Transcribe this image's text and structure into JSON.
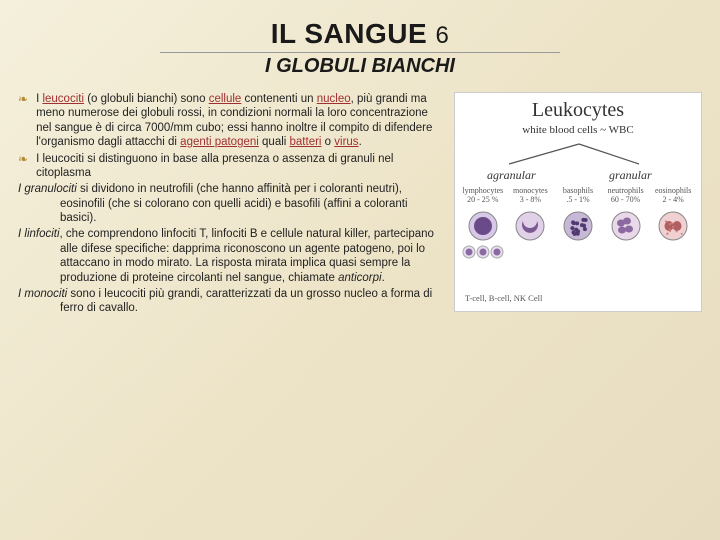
{
  "title": {
    "main": "IL SANGUE",
    "num": "6"
  },
  "subtitle": "I GLOBULI BIANCHI",
  "bullets": [
    {
      "pre": "I ",
      "link1": "leucociti",
      "mid1": " (o globuli bianchi) sono ",
      "link2": "cellule",
      "mid2": " contenenti un ",
      "link3": "nucleo",
      "mid3": ", più grandi ma meno numerose dei globuli rossi, in condizioni normali la loro concentrazione nel sangue è di circa 7000/mm cubo; essi hanno inoltre il compito di difendere l'organismo dagli attacchi di ",
      "link4": "agenti patogeni",
      "mid4": " quali ",
      "link5": "batteri",
      "mid5": " o ",
      "link6": "virus",
      "end": "."
    },
    {
      "text": "I leucociti si distinguono in base alla presenza o assenza di granuli nel citoplasma"
    }
  ],
  "paras": [
    {
      "lead": "I granulociti",
      "rest": " si dividono in neutrofili (che hanno affinità per i coloranti neutri), eosinofili (che si colorano con quelli acidi) e basofili (affini a coloranti basici)."
    },
    {
      "lead": "I linfociti",
      "rest": ", che comprendono linfociti T, linfociti B e cellule natural killer, partecipano alle difese specifiche: dapprima riconoscono un agente patogeno, poi lo attaccano in modo mirato. La risposta mirata implica quasi sempre la produzione di proteine circolanti nel sangue, chiamate ",
      "em": "anticorpi",
      "post": "."
    },
    {
      "lead": "I monociti",
      "rest": " sono i leucociti più grandi, caratterizzati da un grosso nucleo a forma di ferro di cavallo."
    }
  ],
  "diagram": {
    "title": "Leukocytes",
    "sub": "white blood cells ~ WBC",
    "branch_left": "agranular",
    "branch_right": "granular",
    "cells": [
      {
        "name": "lymphocytes",
        "pct": "20 - 25 %",
        "fill": "#d8c8e8",
        "nuc": "#6b4a8a"
      },
      {
        "name": "monocytes",
        "pct": "3 - 8%",
        "fill": "#e0d0e8",
        "nuc": "#7a5a90"
      },
      {
        "name": "basophils",
        "pct": ".5 - 1%",
        "fill": "#c8b8d8",
        "nuc": "#503a70"
      },
      {
        "name": "neutrophils",
        "pct": "60 - 70%",
        "fill": "#e8d8e8",
        "nuc": "#8a6aa0"
      },
      {
        "name": "eosinophils",
        "pct": "2 - 4%",
        "fill": "#f0d0d0",
        "nuc": "#b06060"
      }
    ],
    "tcb": "T-cell, B-cell, NK Cell",
    "colors": {
      "branch_line": "#555",
      "cell_stroke": "#888"
    }
  }
}
